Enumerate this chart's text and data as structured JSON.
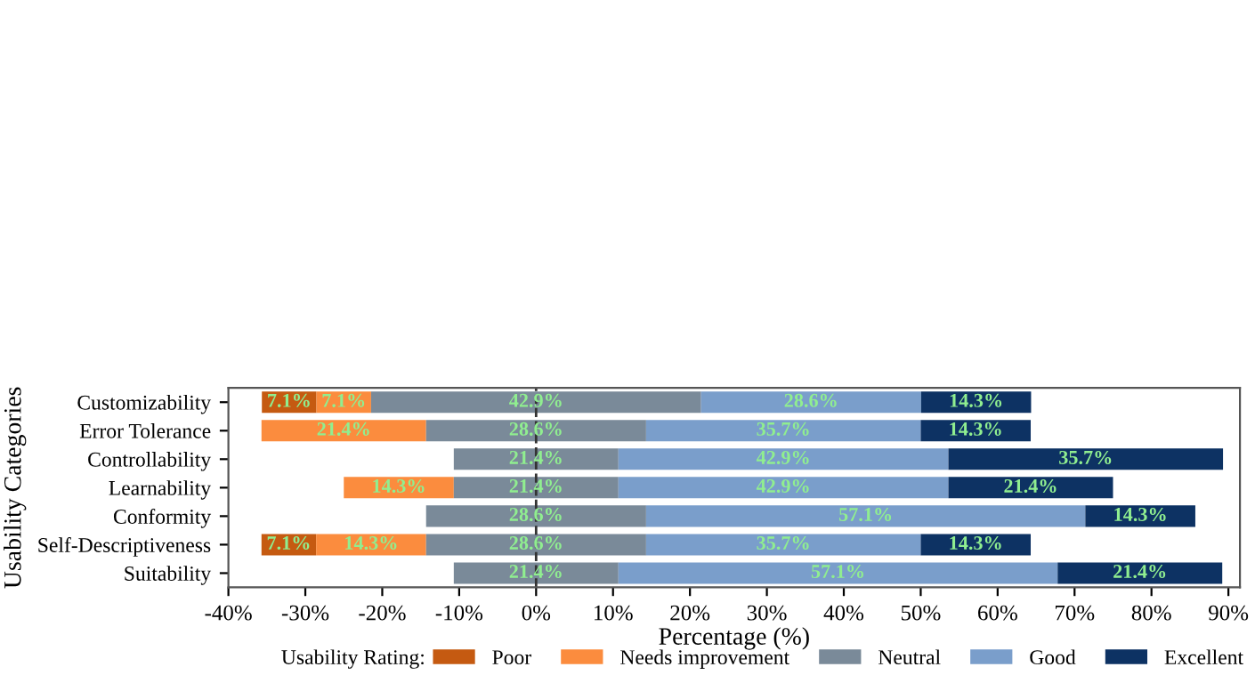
{
  "chart_data": {
    "type": "bar",
    "orientation": "horizontal",
    "xlabel": "Percentage (%)",
    "ylabel": "Usability Categories",
    "legend_title": "Usability Rating:",
    "legend": "bottom",
    "grid": false,
    "categories": [
      "Customizability",
      "Error Tolerance",
      "Controllability",
      "Learnability",
      "Conformity",
      "Self-Descriptiveness",
      "Suitability"
    ],
    "series": [
      {
        "name": "Poor",
        "color": "#c55a11",
        "values": [
          7.1,
          null,
          null,
          null,
          null,
          7.1,
          null
        ],
        "base": [
          -35.65,
          null,
          null,
          null,
          null,
          -35.7,
          null
        ],
        "value_labels": [
          "7.1%",
          null,
          null,
          null,
          null,
          "7.1%",
          null
        ]
      },
      {
        "name": "Needs improvement",
        "color": "#fb8c3e",
        "values": [
          7.1,
          21.4,
          null,
          14.3,
          null,
          14.3,
          null
        ],
        "base": [
          -28.55,
          -35.7,
          null,
          -25.0,
          null,
          -28.6,
          null
        ],
        "value_labels": [
          "7.1%",
          "21.4%",
          null,
          "14.3%",
          null,
          "14.3%",
          null
        ]
      },
      {
        "name": "Neutral",
        "color": "#7a8a99",
        "values": [
          42.9,
          28.6,
          21.4,
          21.4,
          28.6,
          28.6,
          21.4
        ],
        "base": [
          -21.45,
          -14.3,
          -10.7,
          -10.7,
          -14.3,
          -14.3,
          -10.7
        ],
        "value_labels": [
          "42.9%",
          "28.6%",
          "21.4%",
          "21.4%",
          "28.6%",
          "28.6%",
          "21.4%"
        ]
      },
      {
        "name": "Good",
        "color": "#7a9ecb",
        "values": [
          28.6,
          35.7,
          42.9,
          42.9,
          57.1,
          35.7,
          57.1
        ],
        "base": [
          21.45,
          14.3,
          10.7,
          10.7,
          14.3,
          14.3,
          10.7
        ],
        "value_labels": [
          "28.6%",
          "35.7%",
          "42.9%",
          "42.9%",
          "57.1%",
          "35.7%",
          "57.1%"
        ]
      },
      {
        "name": "Excellent",
        "color": "#0d3263",
        "values": [
          14.3,
          14.3,
          35.7,
          21.4,
          14.3,
          14.3,
          21.4
        ],
        "base": [
          50.05,
          50.0,
          53.6,
          53.6,
          71.4,
          50.0,
          67.8
        ],
        "value_labels": [
          "14.3%",
          "14.3%",
          "35.7%",
          "21.4%",
          "14.3%",
          "14.3%",
          "21.4%"
        ]
      }
    ],
    "xlim": [
      -40,
      91.5
    ],
    "xticks": [
      {
        "value": -40,
        "label": "-40%"
      },
      {
        "value": -30,
        "label": "-30%"
      },
      {
        "value": -20,
        "label": "-20%"
      },
      {
        "value": -10,
        "label": "-10%"
      },
      {
        "value": 0,
        "label": "0%"
      },
      {
        "value": 10,
        "label": "10%"
      },
      {
        "value": 20,
        "label": "20%"
      },
      {
        "value": 30,
        "label": "30%"
      },
      {
        "value": 40,
        "label": "40%"
      },
      {
        "value": 50,
        "label": "50%"
      },
      {
        "value": 60,
        "label": "60%"
      },
      {
        "value": 70,
        "label": "70%"
      },
      {
        "value": 80,
        "label": "80%"
      },
      {
        "value": 90,
        "label": "90%"
      }
    ],
    "ref_lines": [
      {
        "axis": "x",
        "value": 0,
        "label": null,
        "color": "#333333",
        "line_style": "dashed"
      }
    ]
  }
}
